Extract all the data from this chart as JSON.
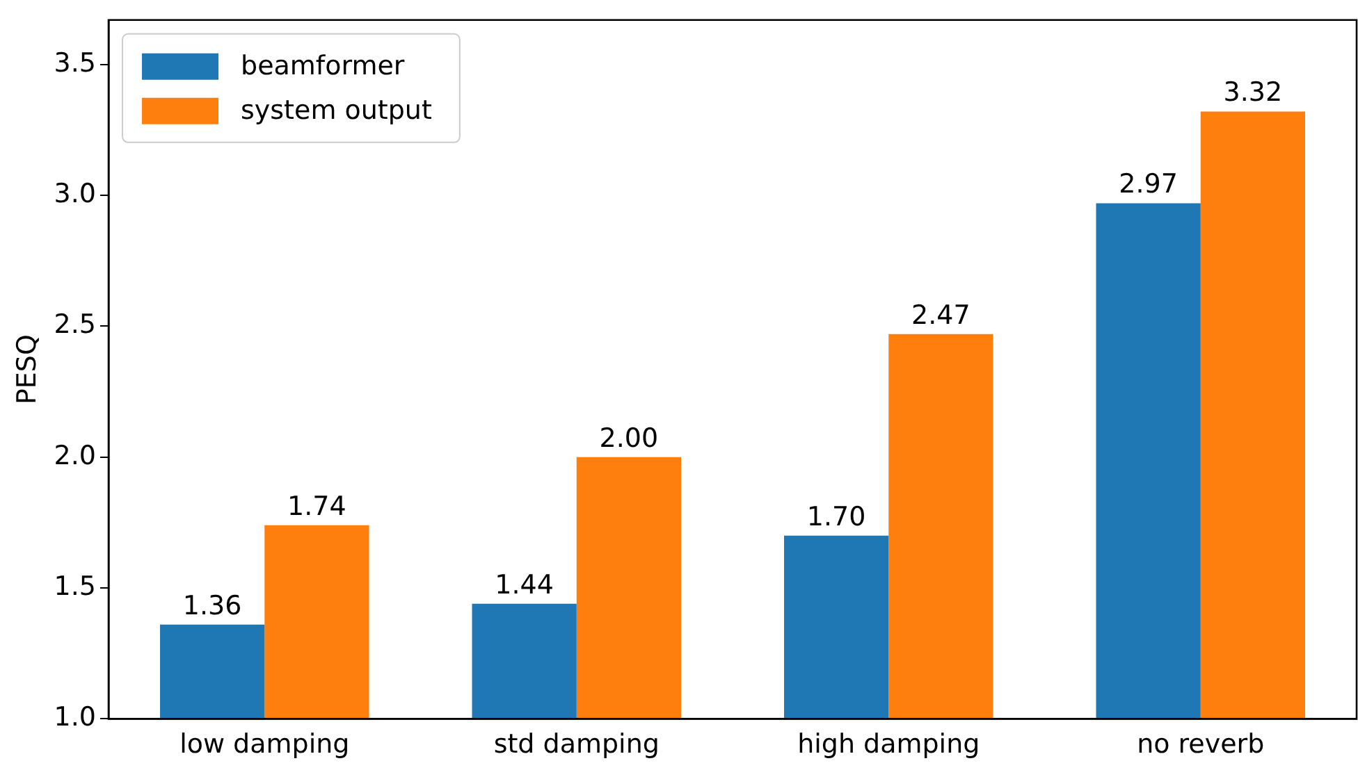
{
  "chart_data": {
    "type": "bar",
    "ylabel": "PESQ",
    "categories": [
      "low damping",
      "std damping",
      "high damping",
      "no reverb"
    ],
    "series": [
      {
        "name": "beamformer",
        "color": "#1f77b4",
        "values": [
          1.36,
          1.44,
          1.7,
          2.97
        ],
        "value_labels": [
          "1.36",
          "1.44",
          "1.70",
          "2.97"
        ]
      },
      {
        "name": "system output",
        "color": "#ff7f0e",
        "values": [
          1.74,
          2.0,
          2.47,
          3.32
        ],
        "value_labels": [
          "1.74",
          "2.00",
          "2.47",
          "3.32"
        ]
      }
    ],
    "ylim": [
      1.0,
      3.67
    ],
    "yticks": [
      {
        "value": 1.0,
        "label": "1.0"
      },
      {
        "value": 1.5,
        "label": "1.5"
      },
      {
        "value": 2.0,
        "label": "2.0"
      },
      {
        "value": 2.5,
        "label": "2.5"
      },
      {
        "value": 3.0,
        "label": "3.0"
      },
      {
        "value": 3.5,
        "label": "3.5"
      }
    ],
    "grid": false,
    "legend": "top left"
  }
}
